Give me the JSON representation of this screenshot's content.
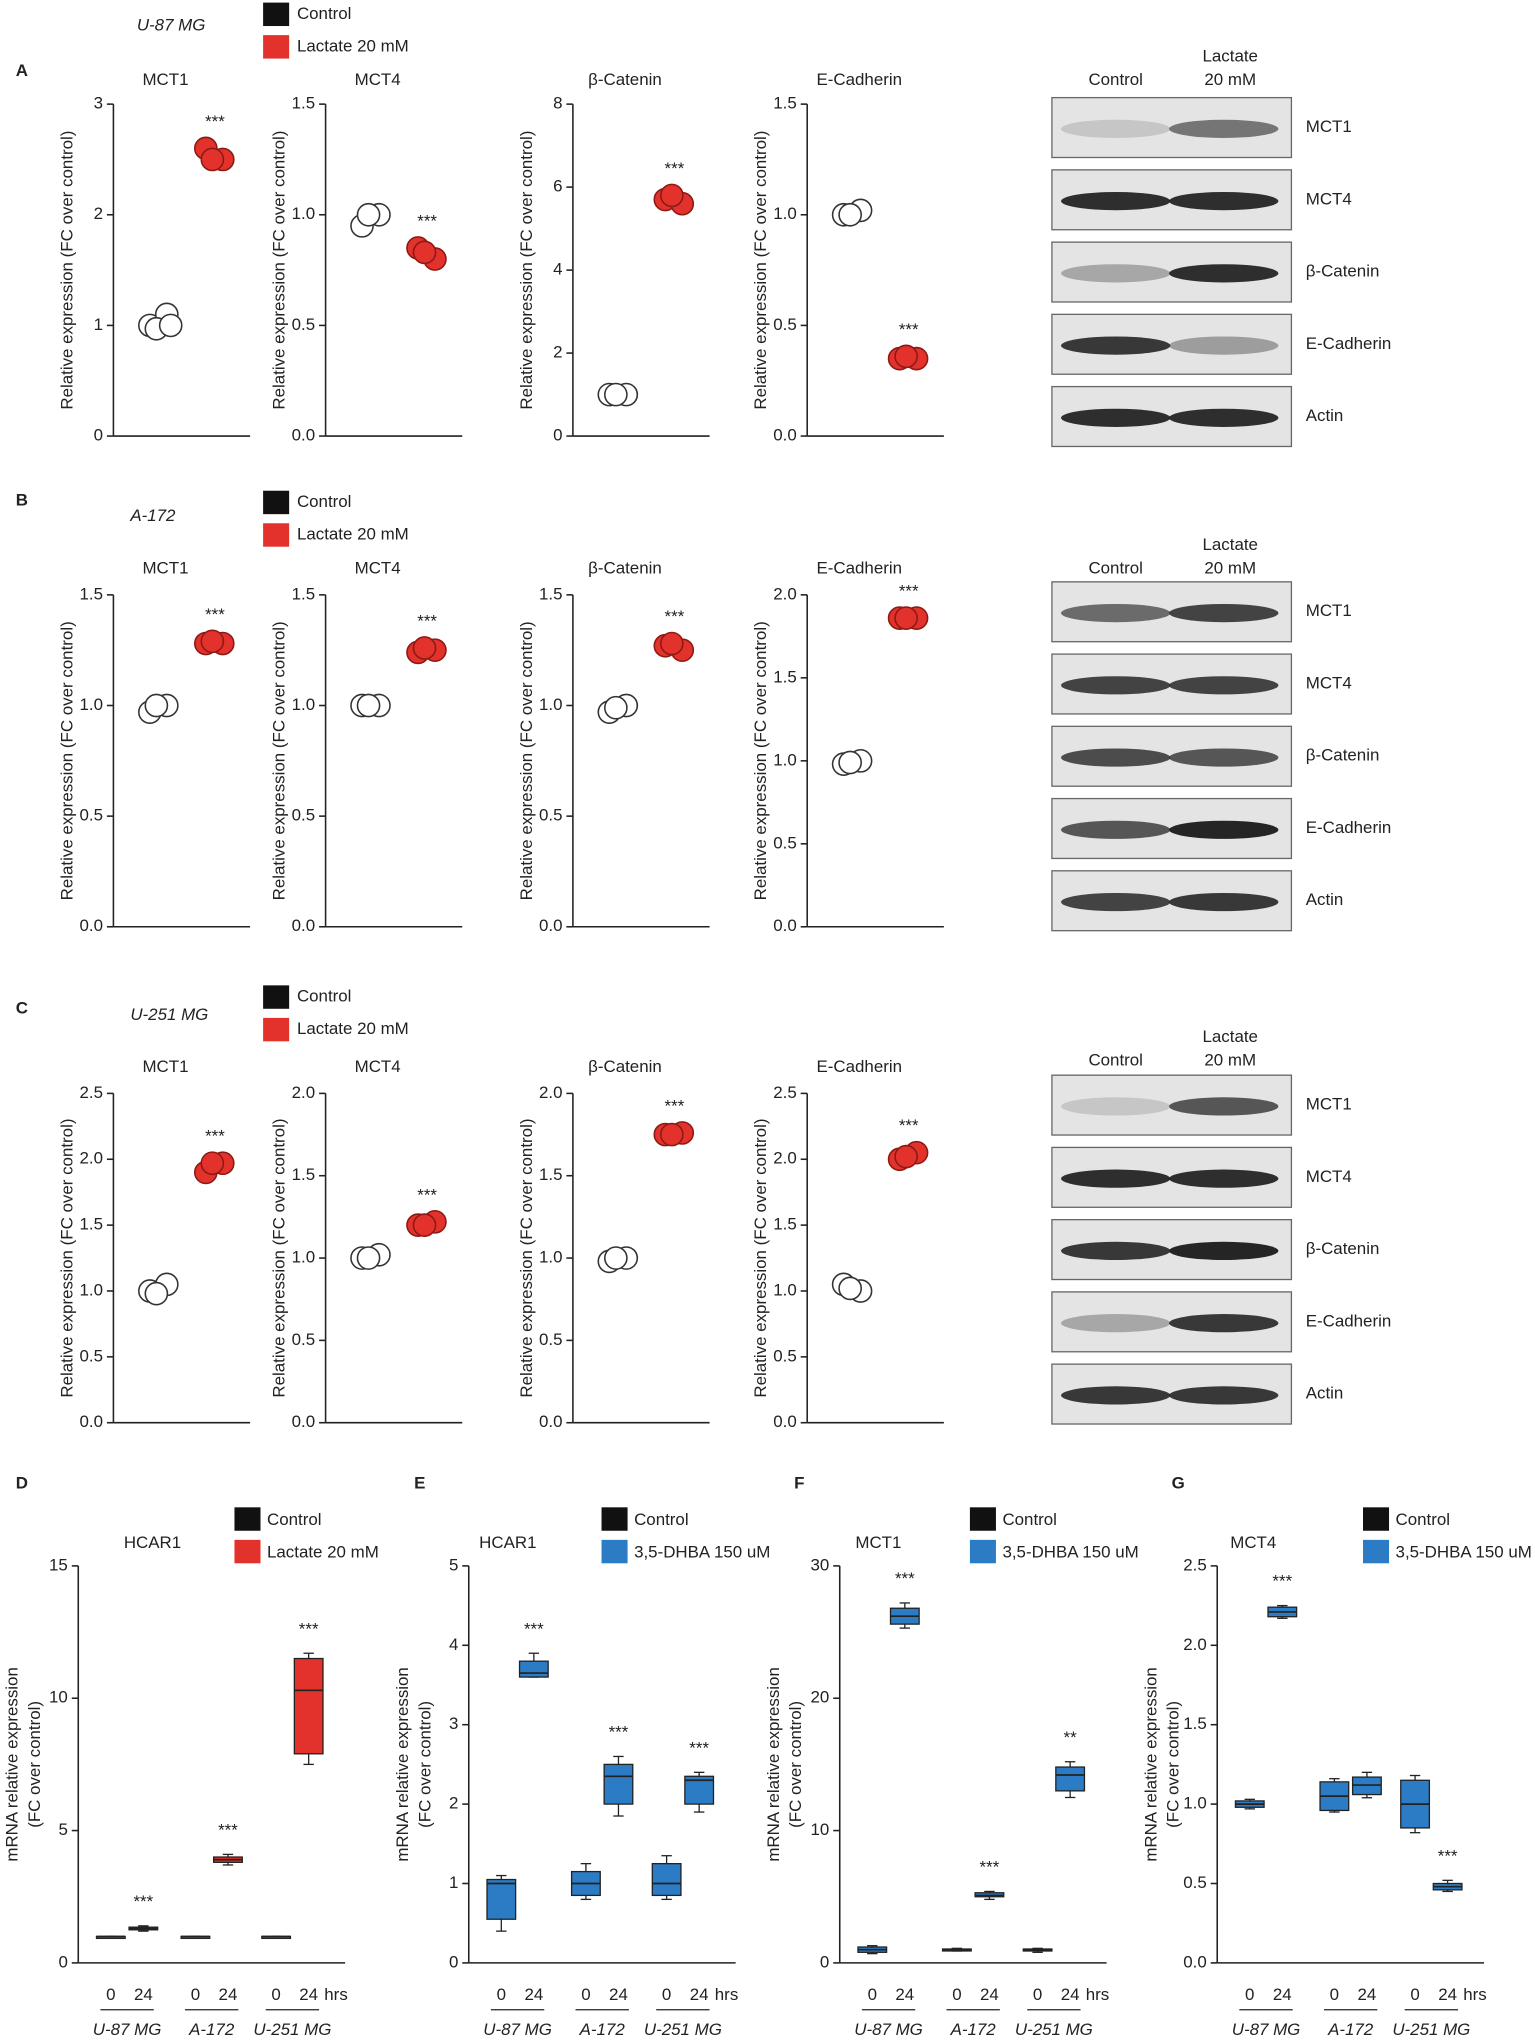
{
  "rows": [
    {
      "letter": "A",
      "cell_line": "U-87 MG",
      "legend": [
        {
          "name": "Control",
          "color": "#111111"
        },
        {
          "name": "Lactate 20 mM",
          "color": "#e3312b"
        }
      ],
      "blot": {
        "columns": [
          [
            "Control"
          ],
          [
            "Lactate",
            "20 mM"
          ]
        ],
        "bands": [
          "MCT1",
          "MCT4",
          "β-Catenin",
          "E-Cadherin",
          "Actin"
        ]
      }
    },
    {
      "letter": "B",
      "cell_line": "A-172",
      "legend": [
        {
          "name": "Control",
          "color": "#111111"
        },
        {
          "name": "Lactate 20 mM",
          "color": "#e3312b"
        }
      ],
      "blot": {
        "columns": [
          [
            "Control"
          ],
          [
            "Lactate",
            "20 mM"
          ]
        ],
        "bands": [
          "MCT1",
          "MCT4",
          "β-Catenin",
          "E-Cadherin",
          "Actin"
        ]
      }
    },
    {
      "letter": "C",
      "cell_line": "U-251 MG",
      "legend": [
        {
          "name": "Control",
          "color": "#111111"
        },
        {
          "name": "Lactate 20 mM",
          "color": "#e3312b"
        }
      ],
      "blot": {
        "columns": [
          [
            "Control"
          ],
          [
            "Lactate",
            "20 mM"
          ]
        ],
        "bands": [
          "MCT1",
          "MCT4",
          "β-Catenin",
          "E-Cadherin",
          "Actin"
        ]
      }
    }
  ],
  "chart_data": [
    {
      "type": "dot",
      "title": "MCT1",
      "ylabel": "Relative expression (FC over control)",
      "ylim": [
        0,
        3
      ],
      "yticks": [
        0,
        1,
        2,
        3
      ],
      "series": [
        {
          "color": "#ffffff",
          "values": [
            1.0,
            1.1,
            0.97,
            1.0
          ]
        },
        {
          "color": "#e3312b",
          "values": [
            2.6,
            2.5,
            2.5
          ]
        }
      ],
      "annotation": "***"
    },
    {
      "type": "dot",
      "title": "MCT4",
      "ylabel": "Relative expression (FC over control)",
      "ylim": [
        0,
        1.5
      ],
      "yticks": [
        {
          "value": 0,
          "label": "0.0"
        },
        0.5,
        {
          "value": 1,
          "label": "1.0"
        },
        1.5
      ],
      "series": [
        {
          "color": "#ffffff",
          "values": [
            0.95,
            1.0,
            1.0
          ]
        },
        {
          "color": "#e3312b",
          "values": [
            0.85,
            0.8,
            0.83
          ]
        }
      ],
      "annotation": "***"
    },
    {
      "type": "dot",
      "title": "β-Catenin",
      "ylabel": "Relative expression (FC over control)",
      "ylim": [
        0,
        8
      ],
      "yticks": [
        0,
        2,
        4,
        6,
        8
      ],
      "series": [
        {
          "color": "#ffffff",
          "values": [
            1.0,
            1.0,
            1.0
          ]
        },
        {
          "color": "#e3312b",
          "values": [
            5.7,
            5.6,
            5.8
          ]
        }
      ],
      "annotation": "***"
    },
    {
      "type": "dot",
      "title": "E-Cadherin",
      "ylabel": "Relative expression (FC over control)",
      "ylim": [
        0,
        1.5
      ],
      "yticks": [
        {
          "value": 0,
          "label": "0.0"
        },
        0.5,
        {
          "value": 1,
          "label": "1.0"
        },
        1.5
      ],
      "series": [
        {
          "color": "#ffffff",
          "values": [
            1.0,
            1.02,
            1.0
          ]
        },
        {
          "color": "#e3312b",
          "values": [
            0.35,
            0.35,
            0.36
          ]
        }
      ],
      "annotation": "***"
    },
    {
      "type": "dot",
      "title": "MCT1",
      "ylabel": "Relative expression (FC over control)",
      "ylim": [
        0,
        1.5
      ],
      "yticks": [
        {
          "value": 0,
          "label": "0.0"
        },
        0.5,
        {
          "value": 1,
          "label": "1.0"
        },
        1.5
      ],
      "series": [
        {
          "color": "#ffffff",
          "values": [
            0.97,
            1.0,
            1.0
          ]
        },
        {
          "color": "#e3312b",
          "values": [
            1.28,
            1.28,
            1.29
          ]
        }
      ],
      "annotation": "***"
    },
    {
      "type": "dot",
      "title": "MCT4",
      "ylabel": "Relative expression (FC over control)",
      "ylim": [
        0,
        1.5
      ],
      "yticks": [
        {
          "value": 0,
          "label": "0.0"
        },
        0.5,
        {
          "value": 1,
          "label": "1.0"
        },
        1.5
      ],
      "series": [
        {
          "color": "#ffffff",
          "values": [
            1.0,
            1.0,
            1.0
          ]
        },
        {
          "color": "#e3312b",
          "values": [
            1.24,
            1.25,
            1.26
          ]
        }
      ],
      "annotation": "***"
    },
    {
      "type": "dot",
      "title": "β-Catenin",
      "ylabel": "Relative expression (FC over control)",
      "ylim": [
        0,
        1.5
      ],
      "yticks": [
        {
          "value": 0,
          "label": "0.0"
        },
        0.5,
        {
          "value": 1,
          "label": "1.0"
        },
        1.5
      ],
      "series": [
        {
          "color": "#ffffff",
          "values": [
            0.97,
            1.0,
            0.99
          ]
        },
        {
          "color": "#e3312b",
          "values": [
            1.27,
            1.25,
            1.28
          ]
        }
      ],
      "annotation": "***"
    },
    {
      "type": "dot",
      "title": "E-Cadherin",
      "ylabel": "Relative expression (FC over control)",
      "ylim": [
        0,
        2
      ],
      "yticks": [
        {
          "value": 0,
          "label": "0.0"
        },
        0.5,
        {
          "value": 1,
          "label": "1.0"
        },
        1.5,
        {
          "value": 2,
          "label": "2.0"
        }
      ],
      "series": [
        {
          "color": "#ffffff",
          "values": [
            0.98,
            1.0,
            0.99
          ]
        },
        {
          "color": "#e3312b",
          "values": [
            1.86,
            1.86,
            1.86
          ]
        }
      ],
      "annotation": "***"
    },
    {
      "type": "dot",
      "title": "MCT1",
      "ylabel": "Relative expression (FC over control)",
      "ylim": [
        0,
        2.5
      ],
      "yticks": [
        {
          "value": 0,
          "label": "0.0"
        },
        0.5,
        {
          "value": 1,
          "label": "1.0"
        },
        1.5,
        {
          "value": 2,
          "label": "2.0"
        },
        2.5
      ],
      "series": [
        {
          "color": "#ffffff",
          "values": [
            1.0,
            1.05,
            0.98
          ]
        },
        {
          "color": "#e3312b",
          "values": [
            1.9,
            1.97,
            1.97
          ]
        }
      ],
      "annotation": "***"
    },
    {
      "type": "dot",
      "title": "MCT4",
      "ylabel": "Relative expression (FC over control)",
      "ylim": [
        0,
        2
      ],
      "yticks": [
        {
          "value": 0,
          "label": "0.0"
        },
        0.5,
        {
          "value": 1,
          "label": "1.0"
        },
        1.5,
        {
          "value": 2,
          "label": "2.0"
        }
      ],
      "series": [
        {
          "color": "#ffffff",
          "values": [
            1.0,
            1.02,
            1.0
          ]
        },
        {
          "color": "#e3312b",
          "values": [
            1.2,
            1.22,
            1.2
          ]
        }
      ],
      "annotation": "***"
    },
    {
      "type": "dot",
      "title": "β-Catenin",
      "ylabel": "Relative expression (FC over control)",
      "ylim": [
        0,
        2
      ],
      "yticks": [
        {
          "value": 0,
          "label": "0.0"
        },
        0.5,
        {
          "value": 1,
          "label": "1.0"
        },
        1.5,
        {
          "value": 2,
          "label": "2.0"
        }
      ],
      "series": [
        {
          "color": "#ffffff",
          "values": [
            0.98,
            1.0,
            1.0
          ]
        },
        {
          "color": "#e3312b",
          "values": [
            1.75,
            1.76,
            1.75
          ]
        }
      ],
      "annotation": "***"
    },
    {
      "type": "dot",
      "title": "E-Cadherin",
      "ylabel": "Relative expression (FC over control)",
      "ylim": [
        0,
        2.5
      ],
      "yticks": [
        {
          "value": 0,
          "label": "0.0"
        },
        0.5,
        {
          "value": 1,
          "label": "1.0"
        },
        1.5,
        {
          "value": 2,
          "label": "2.0"
        },
        2.5
      ],
      "series": [
        {
          "color": "#ffffff",
          "values": [
            1.05,
            1.0,
            1.02
          ]
        },
        {
          "color": "#e3312b",
          "values": [
            2.0,
            2.05,
            2.02
          ]
        }
      ],
      "annotation": "***"
    },
    {
      "type": "box",
      "letter": "D",
      "title": "HCAR1",
      "ylabel": [
        "mRNA relative expression",
        "(FC over control)"
      ],
      "legend": [
        {
          "name": "Control",
          "color": "#111111"
        },
        {
          "name": "Lactate 20 mM",
          "color": "#e3312b"
        }
      ],
      "ylim": [
        0,
        15
      ],
      "yticks": [
        0,
        5,
        10,
        15
      ],
      "categories": [
        "U-87 MG",
        "A-172",
        "U-251 MG"
      ],
      "timepoints": [
        "0",
        "24"
      ],
      "unit": "hrs",
      "color": "#e3312b",
      "boxes": [
        [
          1,
          1,
          1,
          1,
          1
        ],
        [
          1.2,
          1.25,
          1.3,
          1.35,
          1.4
        ],
        [
          1,
          1,
          1,
          1,
          1
        ],
        [
          3.7,
          3.8,
          3.9,
          4.0,
          4.1
        ],
        [
          1,
          1,
          1,
          1,
          1
        ],
        [
          7.5,
          7.9,
          10.3,
          11.5,
          11.7
        ]
      ],
      "annotations": [
        null,
        "***",
        null,
        "***",
        null,
        "***"
      ]
    },
    {
      "type": "box",
      "letter": "E",
      "title": "HCAR1",
      "ylabel": [
        "mRNA relative expression",
        "(FC over control)"
      ],
      "legend": [
        {
          "name": "Control",
          "color": "#111111"
        },
        {
          "name": "3,5-DHBA 150 uM",
          "color": "#2b7cc4"
        }
      ],
      "ylim": [
        0,
        5
      ],
      "yticks": [
        0,
        1,
        2,
        3,
        4,
        5
      ],
      "categories": [
        "U-87 MG",
        "A-172",
        "U-251 MG"
      ],
      "timepoints": [
        "0",
        "24"
      ],
      "unit": "hrs",
      "color": "#2b7cc4",
      "boxes": [
        [
          0.4,
          0.55,
          1.0,
          1.05,
          1.1
        ],
        [
          3.6,
          3.6,
          3.65,
          3.8,
          3.9
        ],
        [
          0.8,
          0.85,
          1.0,
          1.15,
          1.25
        ],
        [
          1.85,
          2.0,
          2.35,
          2.5,
          2.6
        ],
        [
          0.8,
          0.85,
          1.0,
          1.25,
          1.35
        ],
        [
          1.9,
          2.0,
          2.3,
          2.35,
          2.4
        ]
      ],
      "annotations": [
        null,
        "***",
        null,
        "***",
        null,
        "***"
      ]
    },
    {
      "type": "box",
      "letter": "F",
      "title": "MCT1",
      "ylabel": [
        "mRNA relative expression",
        "(FC over control)"
      ],
      "legend": [
        {
          "name": "Control",
          "color": "#111111"
        },
        {
          "name": "3,5-DHBA 150 uM",
          "color": "#2b7cc4"
        }
      ],
      "ylim": [
        0,
        30
      ],
      "yticks": [
        0,
        10,
        20,
        30
      ],
      "categories": [
        "U-87 MG",
        "A-172",
        "U-251 MG"
      ],
      "timepoints": [
        "0",
        "24"
      ],
      "unit": "hrs",
      "color": "#2b7cc4",
      "boxes": [
        [
          0.7,
          0.8,
          1.0,
          1.2,
          1.3
        ],
        [
          25.3,
          25.6,
          26.2,
          26.8,
          27.2
        ],
        [
          0.9,
          1.0,
          1.0,
          1.05,
          1.1
        ],
        [
          4.8,
          5.0,
          5.1,
          5.3,
          5.4
        ],
        [
          0.8,
          0.9,
          1.0,
          1.05,
          1.1
        ],
        [
          12.5,
          13.0,
          14.2,
          14.8,
          15.2
        ]
      ],
      "annotations": [
        null,
        "***",
        null,
        "***",
        null,
        "**"
      ]
    },
    {
      "type": "box",
      "letter": "G",
      "title": "MCT4",
      "ylabel": [
        "mRNA relative expression",
        "(FC over control)"
      ],
      "legend": [
        {
          "name": "Control",
          "color": "#111111"
        },
        {
          "name": "3,5-DHBA 150 uM",
          "color": "#2b7cc4"
        }
      ],
      "ylim": [
        0,
        2.5
      ],
      "yticks": [
        {
          "value": 0,
          "label": "0.0"
        },
        0.5,
        {
          "value": 1,
          "label": "1.0"
        },
        1.5,
        {
          "value": 2,
          "label": "2.0"
        },
        2.5
      ],
      "categories": [
        "U-87 MG",
        "A-172",
        "U-251 MG"
      ],
      "timepoints": [
        "0",
        "24"
      ],
      "unit": "hrs",
      "color": "#2b7cc4",
      "boxes": [
        [
          0.97,
          0.98,
          1.0,
          1.02,
          1.03
        ],
        [
          2.17,
          2.18,
          2.21,
          2.24,
          2.25
        ],
        [
          0.95,
          0.96,
          1.05,
          1.14,
          1.16
        ],
        [
          1.04,
          1.06,
          1.12,
          1.17,
          1.2
        ],
        [
          0.82,
          0.85,
          1.0,
          1.15,
          1.18
        ],
        [
          0.45,
          0.46,
          0.48,
          0.5,
          0.52
        ]
      ],
      "annotations": [
        null,
        "***",
        null,
        null,
        null,
        "***"
      ]
    }
  ]
}
